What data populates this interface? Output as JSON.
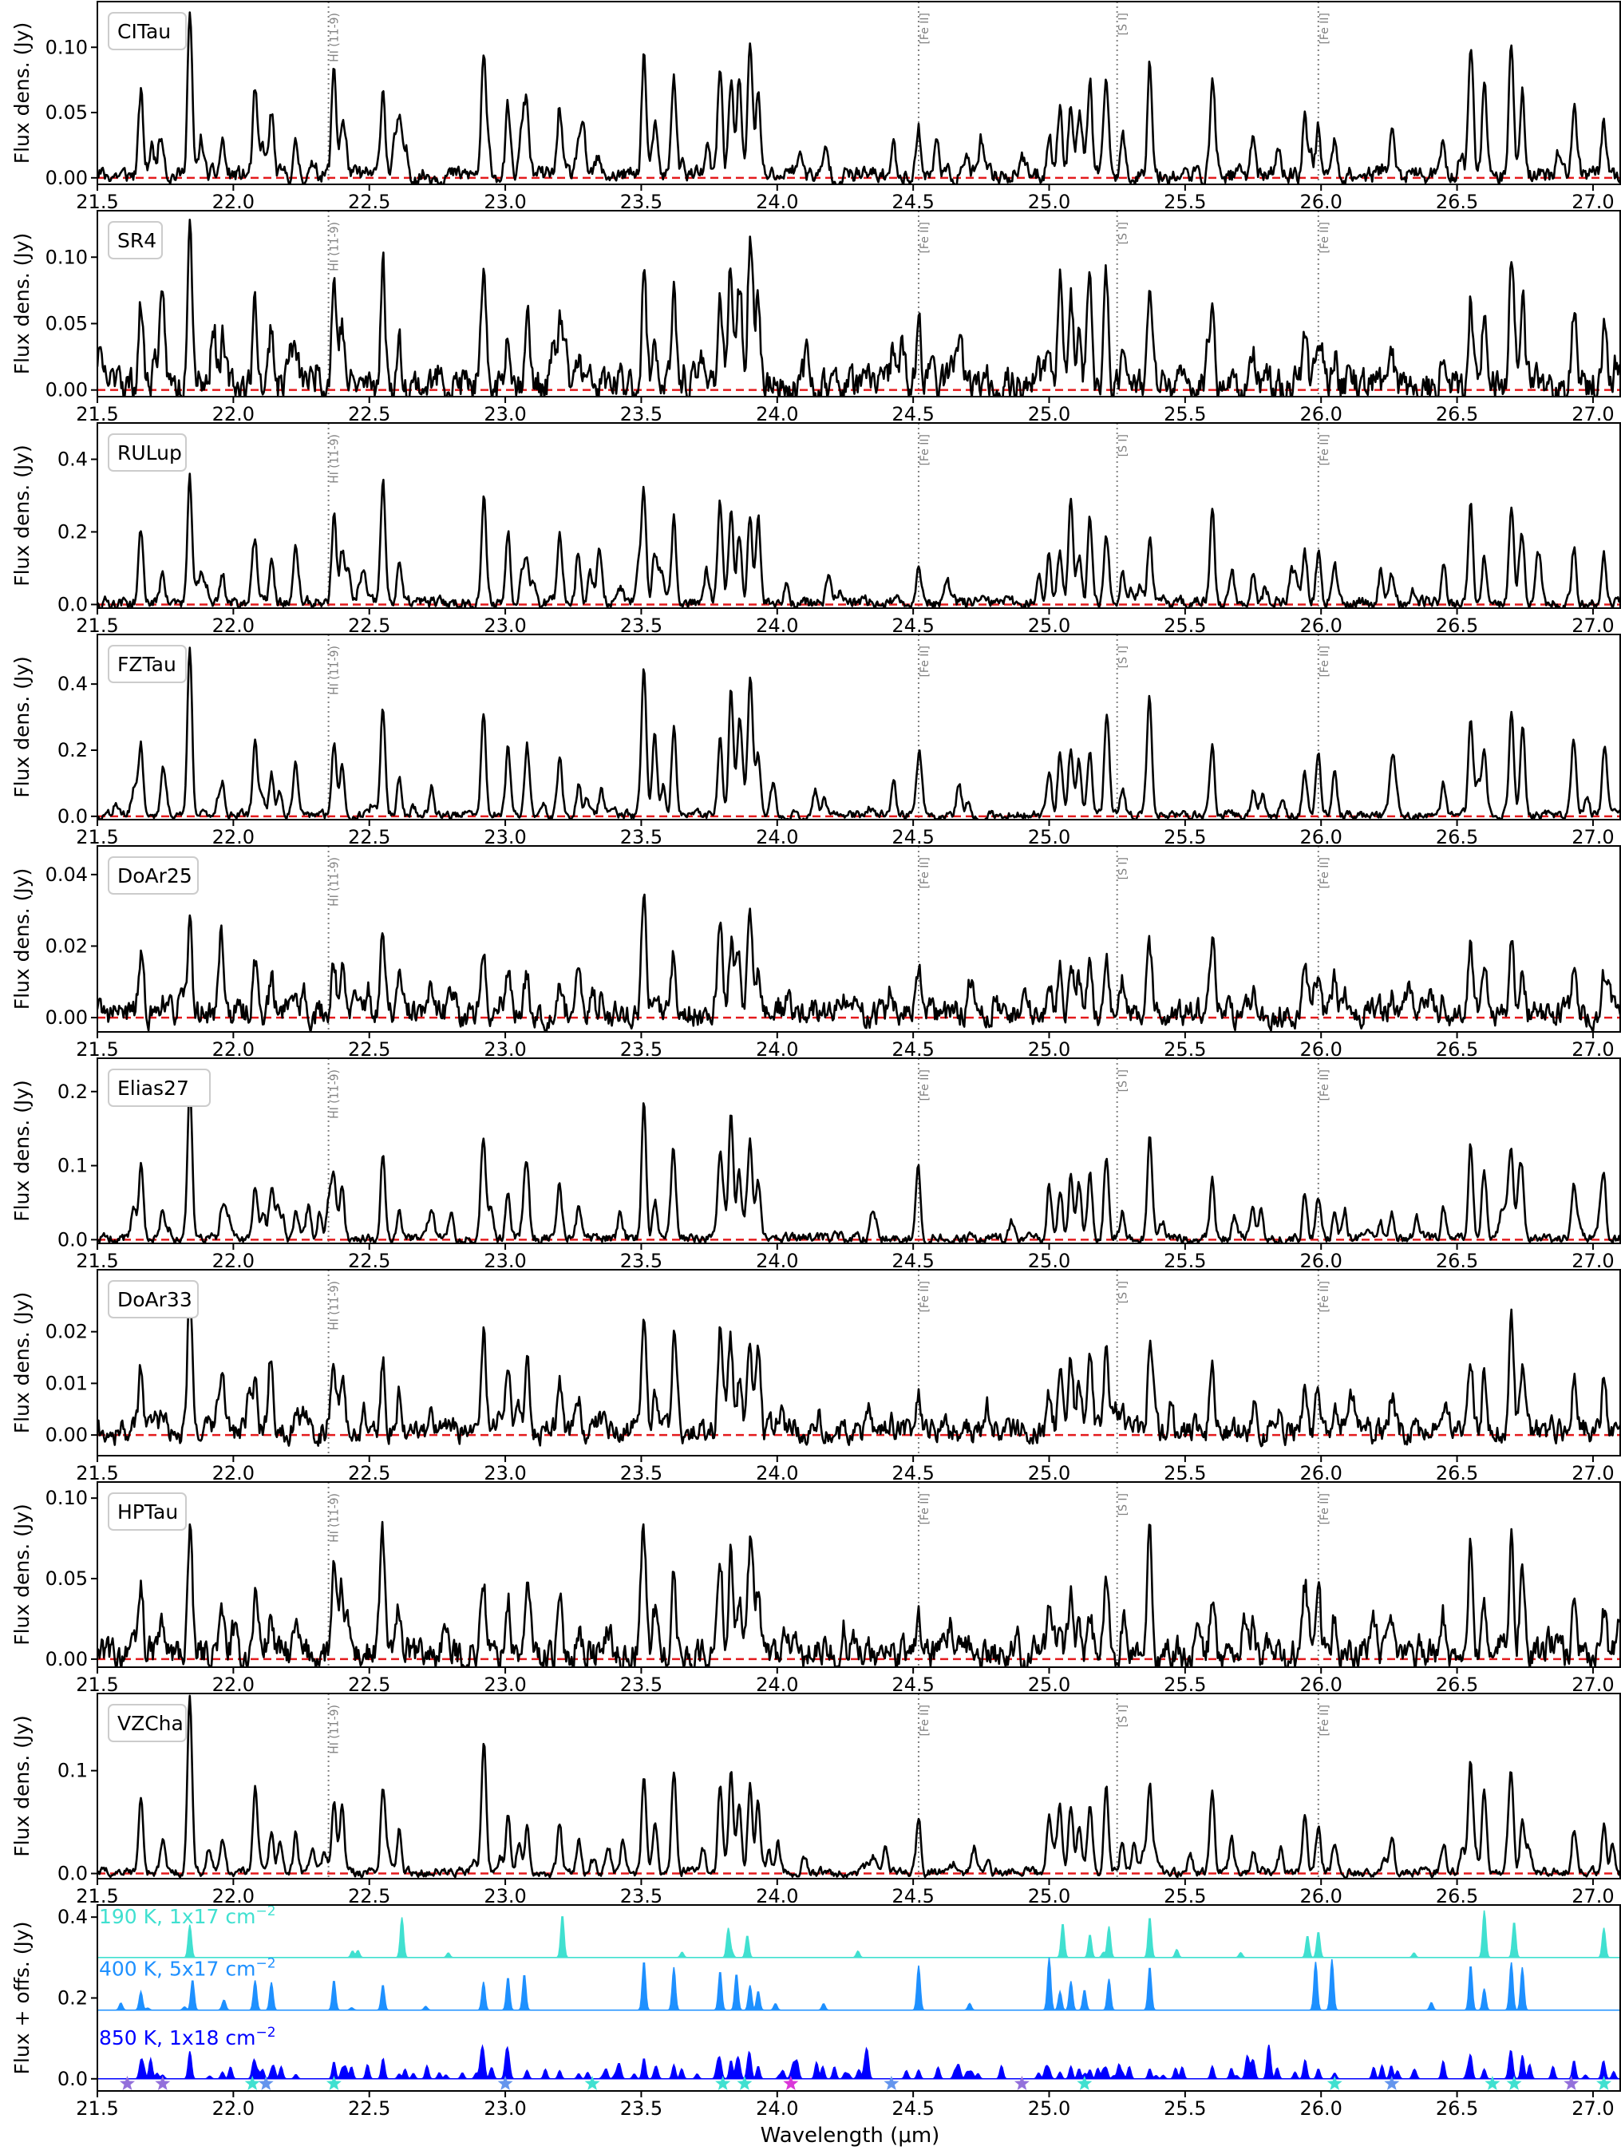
{
  "figure": {
    "ylabel_flux": "Flux dens. (Jy)",
    "ylabel_model": "Flux + offs. (Jy)",
    "xlabel": "Wavelength (μm)"
  },
  "colors": {
    "spectrum": "#000000",
    "zero_line": "#e41a1c",
    "marker_line": "#808080",
    "model_190K": "#40e0d0",
    "model_400K": "#1e90ff",
    "model_850K": "#0000ff",
    "star_cyan": "#40e0d0",
    "star_blue": "#6495ed",
    "star_violet": "#9370db",
    "star_magenta": "#da38d9"
  },
  "chart_data": [
    {
      "type": "line",
      "panel": "CITau",
      "x_range": [
        21.5,
        27.1
      ],
      "ylim": [
        -0.005,
        0.135
      ],
      "yticks": [
        0.0,
        0.05,
        0.1
      ],
      "ytick_labels": [
        "0.00",
        "0.05",
        "0.10"
      ],
      "xticks": [
        21.5,
        22.0,
        22.5,
        23.0,
        23.5,
        24.0,
        24.5,
        25.0,
        25.5,
        26.0,
        26.5,
        27.0
      ],
      "xtick_labels": [
        "21.5",
        "22.0",
        "22.5",
        "23.0",
        "23.5",
        "24.0",
        "24.5",
        "25.0",
        "25.5",
        "26.0",
        "26.5",
        "27.0"
      ],
      "ylabel": "Flux dens. (Jy)",
      "scale": 0.125,
      "noise": 0.006,
      "seed": 11,
      "zero_line": 0
    },
    {
      "type": "line",
      "panel": "SR4",
      "x_range": [
        21.5,
        27.1
      ],
      "ylim": [
        -0.005,
        0.135
      ],
      "yticks": [
        0.0,
        0.05,
        0.1
      ],
      "ytick_labels": [
        "0.00",
        "0.05",
        "0.10"
      ],
      "xticks": [
        21.5,
        22.0,
        22.5,
        23.0,
        23.5,
        24.0,
        24.5,
        25.0,
        25.5,
        26.0,
        26.5,
        27.0
      ],
      "xtick_labels": [
        "21.5",
        "22.0",
        "22.5",
        "23.0",
        "23.5",
        "24.0",
        "24.5",
        "25.0",
        "25.5",
        "26.0",
        "26.5",
        "27.0"
      ],
      "ylabel": "Flux dens. (Jy)",
      "scale": 0.12,
      "noise": 0.012,
      "seed": 23,
      "zero_line": 0
    },
    {
      "type": "line",
      "panel": "RULup",
      "x_range": [
        21.5,
        27.1
      ],
      "ylim": [
        -0.01,
        0.5
      ],
      "yticks": [
        0.0,
        0.2,
        0.4
      ],
      "ytick_labels": [
        "0.0",
        "0.2",
        "0.4"
      ],
      "xticks": [
        21.5,
        22.0,
        22.5,
        23.0,
        23.5,
        24.0,
        24.5,
        25.0,
        25.5,
        26.0,
        26.5,
        27.0
      ],
      "xtick_labels": [
        "21.5",
        "22.0",
        "22.5",
        "23.0",
        "23.5",
        "24.0",
        "24.5",
        "25.0",
        "25.5",
        "26.0",
        "26.5",
        "27.0"
      ],
      "ylabel": "Flux dens. (Jy)",
      "scale": 0.4,
      "noise": 0.015,
      "seed": 37,
      "zero_line": 0
    },
    {
      "type": "line",
      "panel": "FZTau",
      "x_range": [
        21.5,
        27.1
      ],
      "ylim": [
        -0.01,
        0.55
      ],
      "yticks": [
        0.0,
        0.2,
        0.4
      ],
      "ytick_labels": [
        "0.0",
        "0.2",
        "0.4"
      ],
      "xticks": [
        21.5,
        22.0,
        22.5,
        23.0,
        23.5,
        24.0,
        24.5,
        25.0,
        25.5,
        26.0,
        26.5,
        27.0
      ],
      "xtick_labels": [
        "21.5",
        "22.0",
        "22.5",
        "23.0",
        "23.5",
        "24.0",
        "24.5",
        "25.0",
        "25.5",
        "26.0",
        "26.5",
        "27.0"
      ],
      "ylabel": "Flux dens. (Jy)",
      "scale": 0.43,
      "noise": 0.012,
      "seed": 41,
      "zero_line": 0
    },
    {
      "type": "line",
      "panel": "DoAr25",
      "x_range": [
        21.5,
        27.1
      ],
      "ylim": [
        -0.004,
        0.048
      ],
      "yticks": [
        0.0,
        0.02,
        0.04
      ],
      "ytick_labels": [
        "0.00",
        "0.02",
        "0.04"
      ],
      "xticks": [
        21.5,
        22.0,
        22.5,
        23.0,
        23.5,
        24.0,
        24.5,
        25.0,
        25.5,
        26.0,
        26.5,
        27.0
      ],
      "xtick_labels": [
        "21.5",
        "22.0",
        "22.5",
        "23.0",
        "23.5",
        "24.0",
        "24.5",
        "25.0",
        "25.5",
        "26.0",
        "26.5",
        "27.0"
      ],
      "ylabel": "Flux dens. (Jy)",
      "scale": 0.031,
      "noise": 0.0035,
      "seed": 53,
      "zero_line": 0
    },
    {
      "type": "line",
      "panel": "Elias27",
      "x_range": [
        21.5,
        27.1
      ],
      "ylim": [
        -0.005,
        0.245
      ],
      "yticks": [
        0.0,
        0.1,
        0.2
      ],
      "ytick_labels": [
        "0.0",
        "0.1",
        "0.2"
      ],
      "xticks": [
        21.5,
        22.0,
        22.5,
        23.0,
        23.5,
        24.0,
        24.5,
        25.0,
        25.5,
        26.0,
        26.5,
        27.0
      ],
      "xtick_labels": [
        "21.5",
        "22.0",
        "22.5",
        "23.0",
        "23.5",
        "24.0",
        "24.5",
        "25.0",
        "25.5",
        "26.0",
        "26.5",
        "27.0"
      ],
      "ylabel": "Flux dens. (Jy)",
      "scale": 0.19,
      "noise": 0.006,
      "seed": 67,
      "zero_line": 0
    },
    {
      "type": "line",
      "panel": "DoAr33",
      "x_range": [
        21.5,
        27.1
      ],
      "ylim": [
        -0.004,
        0.032
      ],
      "yticks": [
        0.0,
        0.01,
        0.02
      ],
      "ytick_labels": [
        "0.00",
        "0.01",
        "0.02"
      ],
      "xticks": [
        21.5,
        22.0,
        22.5,
        23.0,
        23.5,
        24.0,
        24.5,
        25.0,
        25.5,
        26.0,
        26.5,
        27.0
      ],
      "xtick_labels": [
        "21.5",
        "22.0",
        "22.5",
        "23.0",
        "23.5",
        "24.0",
        "24.5",
        "25.0",
        "25.5",
        "26.0",
        "26.5",
        "27.0"
      ],
      "ylabel": "Flux dens. (Jy)",
      "scale": 0.025,
      "noise": 0.0022,
      "seed": 79,
      "zero_line": 0
    },
    {
      "type": "line",
      "panel": "HPTau",
      "x_range": [
        21.5,
        27.1
      ],
      "ylim": [
        -0.005,
        0.11
      ],
      "yticks": [
        0.0,
        0.05,
        0.1
      ],
      "ytick_labels": [
        "0.00",
        "0.05",
        "0.10"
      ],
      "xticks": [
        21.5,
        22.0,
        22.5,
        23.0,
        23.5,
        24.0,
        24.5,
        25.0,
        25.5,
        26.0,
        26.5,
        27.0
      ],
      "xtick_labels": [
        "21.5",
        "22.0",
        "22.5",
        "23.0",
        "23.5",
        "24.0",
        "24.5",
        "25.0",
        "25.5",
        "26.0",
        "26.5",
        "27.0"
      ],
      "ylabel": "Flux dens. (Jy)",
      "scale": 0.085,
      "noise": 0.009,
      "seed": 97,
      "zero_line": 0
    },
    {
      "type": "line",
      "panel": "VZCha",
      "x_range": [
        21.5,
        27.1
      ],
      "ylim": [
        -0.005,
        0.175
      ],
      "yticks": [
        0.0,
        0.1
      ],
      "ytick_labels": [
        "0.0",
        "0.1"
      ],
      "xticks": [
        21.5,
        22.0,
        22.5,
        23.0,
        23.5,
        24.0,
        24.5,
        25.0,
        25.5,
        26.0,
        26.5,
        27.0
      ],
      "xtick_labels": [
        "21.5",
        "22.0",
        "22.5",
        "23.0",
        "23.5",
        "24.0",
        "24.5",
        "25.0",
        "25.5",
        "26.0",
        "26.5",
        "27.0"
      ],
      "ylabel": "Flux dens. (Jy)",
      "scale": 0.14,
      "noise": 0.004,
      "seed": 101,
      "zero_line": 0
    },
    {
      "type": "area",
      "panel": "models",
      "x_range": [
        21.5,
        27.1
      ],
      "ylim": [
        -0.03,
        0.43
      ],
      "yticks": [
        0.0,
        0.2,
        0.4
      ],
      "ytick_labels": [
        "0.0",
        "0.2",
        "0.4"
      ],
      "xticks": [
        21.5,
        22.0,
        22.5,
        23.0,
        23.5,
        24.0,
        24.5,
        25.0,
        25.5,
        26.0,
        26.5,
        27.0
      ],
      "xtick_labels": [
        "21.5",
        "22.0",
        "22.5",
        "23.0",
        "23.5",
        "24.0",
        "24.5",
        "25.0",
        "25.5",
        "26.0",
        "26.5",
        "27.0"
      ],
      "ylabel": "Flux + offs. (Jy)",
      "xlabel": "Wavelength (μm)",
      "series": [
        {
          "name": "190 K, 1x17 cm",
          "superscript": "−2",
          "offset": 0.3,
          "scale": 0.12,
          "color": "#40e0d0",
          "lines": [
            21.84,
            22.62,
            23.21,
            23.82,
            23.89,
            25.05,
            25.15,
            25.22,
            25.37,
            25.95,
            25.99,
            26.6,
            26.71,
            27.04
          ]
        },
        {
          "name": "400 K, 5x17 cm",
          "superscript": "−2",
          "offset": 0.17,
          "scale": 0.13,
          "color": "#1e90ff",
          "lines": [
            21.66,
            21.85,
            22.08,
            22.14,
            22.37,
            22.55,
            22.92,
            23.01,
            23.07,
            23.51,
            23.62,
            23.79,
            23.85,
            23.9,
            23.93,
            24.52,
            25.0,
            25.04,
            25.08,
            25.13,
            25.22,
            25.37,
            25.98,
            26.04,
            26.55,
            26.6,
            26.7,
            26.74
          ]
        },
        {
          "name": "850 K, 1x18 cm",
          "superscript": "−2",
          "offset": 0.0,
          "scale": 0.085,
          "color": "#0000ff",
          "dense": true
        }
      ],
      "stars": [
        {
          "x": 21.61,
          "color": "#9370db"
        },
        {
          "x": 21.74,
          "color": "#9370db"
        },
        {
          "x": 22.07,
          "color": "#40e0d0"
        },
        {
          "x": 22.12,
          "color": "#6495ed"
        },
        {
          "x": 22.37,
          "color": "#40e0d0"
        },
        {
          "x": 23.0,
          "color": "#6495ed"
        },
        {
          "x": 23.32,
          "color": "#40e0d0"
        },
        {
          "x": 23.8,
          "color": "#40e0d0"
        },
        {
          "x": 23.88,
          "color": "#40e0d0"
        },
        {
          "x": 24.05,
          "color": "#da38d9"
        },
        {
          "x": 24.42,
          "color": "#6495ed"
        },
        {
          "x": 24.9,
          "color": "#9370db"
        },
        {
          "x": 25.13,
          "color": "#40e0d0"
        },
        {
          "x": 26.05,
          "color": "#40e0d0"
        },
        {
          "x": 26.26,
          "color": "#6495ed"
        },
        {
          "x": 26.63,
          "color": "#40e0d0"
        },
        {
          "x": 26.71,
          "color": "#40e0d0"
        },
        {
          "x": 26.92,
          "color": "#9370db"
        },
        {
          "x": 27.04,
          "color": "#40e0d0"
        }
      ]
    }
  ],
  "common_lines": [
    {
      "x": 21.66,
      "h": 0.57
    },
    {
      "x": 21.74,
      "h": 0.22
    },
    {
      "x": 21.84,
      "h": 1.0
    },
    {
      "x": 21.96,
      "h": 0.27
    },
    {
      "x": 22.08,
      "h": 0.46
    },
    {
      "x": 22.14,
      "h": 0.33
    },
    {
      "x": 22.23,
      "h": 0.22
    },
    {
      "x": 22.37,
      "h": 0.6
    },
    {
      "x": 22.4,
      "h": 0.38
    },
    {
      "x": 22.55,
      "h": 0.63
    },
    {
      "x": 22.61,
      "h": 0.28
    },
    {
      "x": 22.92,
      "h": 0.63
    },
    {
      "x": 23.01,
      "h": 0.43
    },
    {
      "x": 23.08,
      "h": 0.42
    },
    {
      "x": 23.2,
      "h": 0.43
    },
    {
      "x": 23.27,
      "h": 0.2
    },
    {
      "x": 23.51,
      "h": 0.79
    },
    {
      "x": 23.55,
      "h": 0.3
    },
    {
      "x": 23.62,
      "h": 0.59
    },
    {
      "x": 23.79,
      "h": 0.7
    },
    {
      "x": 23.83,
      "h": 0.75
    },
    {
      "x": 23.86,
      "h": 0.52
    },
    {
      "x": 23.9,
      "h": 0.74
    },
    {
      "x": 23.93,
      "h": 0.5
    },
    {
      "x": 24.52,
      "h": 0.32
    },
    {
      "x": 25.0,
      "h": 0.32
    },
    {
      "x": 25.04,
      "h": 0.43
    },
    {
      "x": 25.08,
      "h": 0.6
    },
    {
      "x": 25.11,
      "h": 0.35
    },
    {
      "x": 25.15,
      "h": 0.48
    },
    {
      "x": 25.21,
      "h": 0.53
    },
    {
      "x": 25.27,
      "h": 0.21
    },
    {
      "x": 25.37,
      "h": 0.58
    },
    {
      "x": 25.6,
      "h": 0.54
    },
    {
      "x": 25.75,
      "h": 0.2
    },
    {
      "x": 25.94,
      "h": 0.32
    },
    {
      "x": 25.99,
      "h": 0.38
    },
    {
      "x": 26.05,
      "h": 0.25
    },
    {
      "x": 26.26,
      "h": 0.23
    },
    {
      "x": 26.45,
      "h": 0.22
    },
    {
      "x": 26.55,
      "h": 0.75
    },
    {
      "x": 26.6,
      "h": 0.45
    },
    {
      "x": 26.7,
      "h": 0.73
    },
    {
      "x": 26.74,
      "h": 0.44
    },
    {
      "x": 26.93,
      "h": 0.38
    },
    {
      "x": 27.04,
      "h": 0.42
    }
  ],
  "line_markers": [
    {
      "x": 22.35,
      "label": "HI (11-9)"
    },
    {
      "x": 24.52,
      "label": "[Fe II]"
    },
    {
      "x": 25.25,
      "label": "[S I]"
    },
    {
      "x": 25.99,
      "label": "[Fe II]"
    }
  ]
}
